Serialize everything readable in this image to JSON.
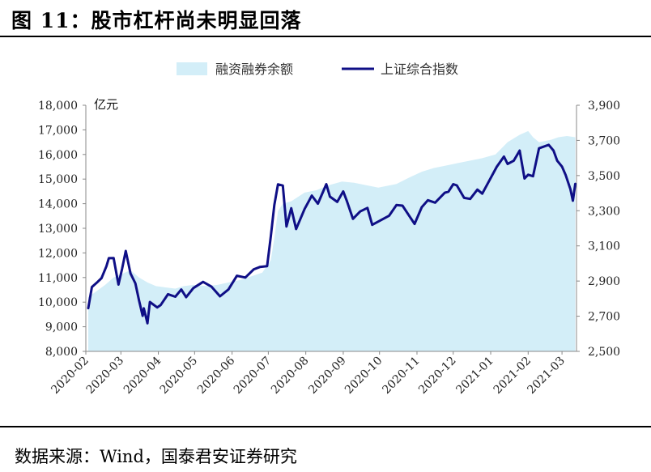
{
  "figure": {
    "title": "图 11：股市杠杆尚未明显回落",
    "source": "数据来源：Wind，国泰君安证券研究"
  },
  "chart_data": {
    "type": "area+line",
    "left_unit": "亿元",
    "x_ticks": [
      "2020-02",
      "2020-03",
      "2020-04",
      "2020-05",
      "2020-06",
      "2020-07",
      "2020-08",
      "2020-09",
      "2020-10",
      "2020-11",
      "2020-12",
      "2021-01",
      "2021-02",
      "2021-03"
    ],
    "x_range": [
      "2020-02-01",
      "2021-03-13"
    ],
    "y_left": {
      "ticks": [
        "8,000",
        "9,000",
        "10,000",
        "11,000",
        "12,000",
        "13,000",
        "14,000",
        "15,000",
        "16,000",
        "17,000",
        "18,000"
      ],
      "ylim": [
        8000,
        18000
      ]
    },
    "y_right": {
      "ticks": [
        "2,500",
        "2,700",
        "2,900",
        "3,100",
        "3,300",
        "3,500",
        "3,700",
        "3,900"
      ],
      "ylim": [
        2500,
        3900
      ]
    },
    "legend_position": "top-center",
    "series": [
      {
        "name": "融资融券余额",
        "kind": "area",
        "axis": "left",
        "color": "#d3eef8",
        "points": [
          [
            "2020-02-03",
            10200
          ],
          [
            "2020-02-10",
            10450
          ],
          [
            "2020-02-17",
            10700
          ],
          [
            "2020-02-24",
            11000
          ],
          [
            "2020-03-02",
            11150
          ],
          [
            "2020-03-09",
            11300
          ],
          [
            "2020-03-16",
            11000
          ],
          [
            "2020-03-23",
            10800
          ],
          [
            "2020-03-30",
            10650
          ],
          [
            "2020-04-07",
            10600
          ],
          [
            "2020-04-15",
            10550
          ],
          [
            "2020-04-22",
            10650
          ],
          [
            "2020-04-30",
            10700
          ],
          [
            "2020-05-11",
            10650
          ],
          [
            "2020-05-20",
            10700
          ],
          [
            "2020-05-29",
            10800
          ],
          [
            "2020-06-08",
            10900
          ],
          [
            "2020-06-17",
            11050
          ],
          [
            "2020-06-26",
            11200
          ],
          [
            "2020-07-03",
            11700
          ],
          [
            "2020-07-06",
            12600
          ],
          [
            "2020-07-09",
            13700
          ],
          [
            "2020-07-13",
            14000
          ],
          [
            "2020-07-20",
            14100
          ],
          [
            "2020-07-31",
            14450
          ],
          [
            "2020-08-10",
            14550
          ],
          [
            "2020-08-20",
            14750
          ],
          [
            "2020-08-31",
            14900
          ],
          [
            "2020-09-10",
            14850
          ],
          [
            "2020-09-20",
            14750
          ],
          [
            "2020-09-30",
            14650
          ],
          [
            "2020-10-15",
            14800
          ],
          [
            "2020-10-25",
            15050
          ],
          [
            "2020-11-05",
            15300
          ],
          [
            "2020-11-15",
            15450
          ],
          [
            "2020-11-25",
            15550
          ],
          [
            "2020-12-05",
            15650
          ],
          [
            "2020-12-15",
            15750
          ],
          [
            "2020-12-25",
            15850
          ],
          [
            "2021-01-05",
            16000
          ],
          [
            "2021-01-15",
            16500
          ],
          [
            "2021-01-25",
            16800
          ],
          [
            "2021-02-01",
            16950
          ],
          [
            "2021-02-05",
            16700
          ],
          [
            "2021-02-10",
            16500
          ],
          [
            "2021-02-20",
            16600
          ],
          [
            "2021-02-26",
            16700
          ],
          [
            "2021-03-05",
            16750
          ],
          [
            "2021-03-12",
            16700
          ]
        ]
      },
      {
        "name": "上证综合指数",
        "kind": "line",
        "axis": "right",
        "color": "#0f0f86",
        "points": [
          [
            "2020-02-03",
            2746
          ],
          [
            "2020-02-06",
            2866
          ],
          [
            "2020-02-10",
            2890
          ],
          [
            "2020-02-14",
            2917
          ],
          [
            "2020-02-18",
            2984
          ],
          [
            "2020-02-20",
            3030
          ],
          [
            "2020-02-24",
            3031
          ],
          [
            "2020-02-28",
            2880
          ],
          [
            "2020-03-02",
            2970
          ],
          [
            "2020-03-05",
            3071
          ],
          [
            "2020-03-09",
            2943
          ],
          [
            "2020-03-13",
            2887
          ],
          [
            "2020-03-16",
            2790
          ],
          [
            "2020-03-19",
            2702
          ],
          [
            "2020-03-20",
            2745
          ],
          [
            "2020-03-23",
            2660
          ],
          [
            "2020-03-25",
            2781
          ],
          [
            "2020-03-31",
            2750
          ],
          [
            "2020-04-03",
            2764
          ],
          [
            "2020-04-09",
            2825
          ],
          [
            "2020-04-15",
            2811
          ],
          [
            "2020-04-20",
            2852
          ],
          [
            "2020-04-24",
            2808
          ],
          [
            "2020-04-30",
            2860
          ],
          [
            "2020-05-08",
            2895
          ],
          [
            "2020-05-15",
            2868
          ],
          [
            "2020-05-22",
            2813
          ],
          [
            "2020-05-29",
            2852
          ],
          [
            "2020-06-05",
            2930
          ],
          [
            "2020-06-12",
            2920
          ],
          [
            "2020-06-19",
            2967
          ],
          [
            "2020-06-24",
            2980
          ],
          [
            "2020-06-30",
            2985
          ],
          [
            "2020-07-03",
            3152
          ],
          [
            "2020-07-06",
            3332
          ],
          [
            "2020-07-09",
            3450
          ],
          [
            "2020-07-13",
            3443
          ],
          [
            "2020-07-16",
            3210
          ],
          [
            "2020-07-20",
            3314
          ],
          [
            "2020-07-24",
            3196
          ],
          [
            "2020-07-31",
            3310
          ],
          [
            "2020-08-06",
            3386
          ],
          [
            "2020-08-11",
            3340
          ],
          [
            "2020-08-18",
            3451
          ],
          [
            "2020-08-21",
            3380
          ],
          [
            "2020-08-27",
            3350
          ],
          [
            "2020-09-01",
            3410
          ],
          [
            "2020-09-04",
            3355
          ],
          [
            "2020-09-09",
            3254
          ],
          [
            "2020-09-15",
            3296
          ],
          [
            "2020-09-21",
            3316
          ],
          [
            "2020-09-25",
            3220
          ],
          [
            "2020-10-09",
            3272
          ],
          [
            "2020-10-15",
            3332
          ],
          [
            "2020-10-20",
            3329
          ],
          [
            "2020-10-30",
            3225
          ],
          [
            "2020-11-05",
            3320
          ],
          [
            "2020-11-10",
            3360
          ],
          [
            "2020-11-16",
            3346
          ],
          [
            "2020-11-24",
            3402
          ],
          [
            "2020-11-27",
            3408
          ],
          [
            "2020-12-01",
            3451
          ],
          [
            "2020-12-04",
            3444
          ],
          [
            "2020-12-10",
            3373
          ],
          [
            "2020-12-15",
            3367
          ],
          [
            "2020-12-21",
            3420
          ],
          [
            "2020-12-25",
            3397
          ],
          [
            "2020-12-31",
            3473
          ],
          [
            "2021-01-06",
            3550
          ],
          [
            "2021-01-12",
            3608
          ],
          [
            "2021-01-15",
            3566
          ],
          [
            "2021-01-20",
            3584
          ],
          [
            "2021-01-25",
            3642
          ],
          [
            "2021-01-29",
            3483
          ],
          [
            "2021-02-01",
            3505
          ],
          [
            "2021-02-05",
            3496
          ],
          [
            "2021-02-10",
            3655
          ],
          [
            "2021-02-18",
            3675
          ],
          [
            "2021-02-22",
            3642
          ],
          [
            "2021-02-25",
            3585
          ],
          [
            "2021-03-01",
            3551
          ],
          [
            "2021-03-04",
            3503
          ],
          [
            "2021-03-08",
            3422
          ],
          [
            "2021-03-10",
            3357
          ],
          [
            "2021-03-12",
            3453
          ]
        ]
      }
    ]
  }
}
